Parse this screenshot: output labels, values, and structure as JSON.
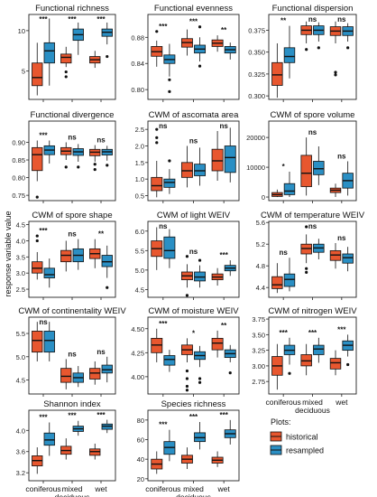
{
  "chart_data": {
    "type": "boxplot",
    "ylabel": "response variable value",
    "categories": [
      "coniferous",
      "mixed\ndeciduous",
      "wet"
    ],
    "legend": {
      "title": "Plots:",
      "placement": "bottom-right",
      "entries": [
        {
          "name": "historical",
          "color": "#e8572f"
        },
        {
          "name": "resampled",
          "color": "#2a8fc4"
        }
      ]
    },
    "panels": [
      {
        "title": "Functional richness",
        "ylim": [
          1.5,
          12.0
        ],
        "yticks": [
          5,
          10
        ],
        "sig": [
          "***",
          "***",
          "***"
        ],
        "boxes": [
          {
            "h": [
              2,
              3.2,
              4.2,
              6.0,
              8.5
            ],
            "r": [
              3.2,
              6.0,
              7.5,
              8.5,
              11.5
            ],
            "ho": [],
            "ro": []
          },
          {
            "h": [
              5.5,
              6.0,
              6.7,
              7.1,
              8.0
            ],
            "r": [
              7.0,
              8.8,
              9.5,
              10.2,
              11.0
            ],
            "ho": [
              4.9,
              4.3
            ],
            "ro": []
          },
          {
            "h": [
              5.4,
              6.0,
              6.4,
              6.8,
              7.5
            ],
            "r": [
              8.3,
              9.3,
              9.8,
              10.2,
              11.0
            ],
            "ho": [],
            "ro": [
              6.8
            ]
          }
        ]
      },
      {
        "title": "Functional evenness",
        "ylim": [
          0.785,
          0.915
        ],
        "yticks": [
          0.8,
          0.84,
          0.88
        ],
        "sig": [
          "***",
          "***",
          "**"
        ],
        "boxes": [
          {
            "h": [
              0.835,
              0.851,
              0.858,
              0.866,
              0.875
            ],
            "r": [
              0.82,
              0.84,
              0.846,
              0.853,
              0.87
            ],
            "ho": [
              0.889
            ],
            "ro": [
              0.815,
              0.797
            ]
          },
          {
            "h": [
              0.852,
              0.865,
              0.872,
              0.878,
              0.892
            ],
            "r": [
              0.843,
              0.856,
              0.862,
              0.868,
              0.88
            ],
            "ho": [],
            "ro": [
              0.836,
              0.896
            ]
          },
          {
            "h": [
              0.858,
              0.866,
              0.871,
              0.876,
              0.883
            ],
            "r": [
              0.846,
              0.856,
              0.861,
              0.866,
              0.872
            ],
            "ho": [],
            "ro": []
          }
        ]
      },
      {
        "title": "Functional dispersion",
        "ylim": [
          0.296,
          0.393
        ],
        "yticks": [
          0.3,
          0.325,
          0.35,
          0.375
        ],
        "sig": [
          "**",
          "ns",
          "ns"
        ],
        "boxes": [
          {
            "h": [
              0.298,
              0.312,
              0.324,
              0.338,
              0.36
            ],
            "r": [
              0.32,
              0.338,
              0.345,
              0.355,
              0.38
            ],
            "ho": [],
            "ro": []
          },
          {
            "h": [
              0.36,
              0.37,
              0.375,
              0.38,
              0.385
            ],
            "r": [
              0.362,
              0.37,
              0.375,
              0.38,
              0.384
            ],
            "ho": [
              0.353
            ],
            "ro": [
              0.355
            ]
          },
          {
            "h": [
              0.36,
              0.369,
              0.374,
              0.379,
              0.385
            ],
            "r": [
              0.362,
              0.369,
              0.374,
              0.379,
              0.383
            ],
            "ho": [
              0.327,
              0.324
            ],
            "ro": [
              0.355
            ]
          }
        ]
      },
      {
        "title": "Functional divergence",
        "ylim": [
          0.735,
          0.96
        ],
        "yticks": [
          0.75,
          0.8,
          0.85,
          0.9
        ],
        "sig": [
          "***",
          "ns",
          "ns"
        ],
        "boxes": [
          {
            "h": [
              0.79,
              0.82,
              0.865,
              0.885,
              0.905
            ],
            "r": [
              0.84,
              0.865,
              0.878,
              0.89,
              0.905
            ],
            "ho": [
              0.745
            ],
            "ro": []
          },
          {
            "h": [
              0.85,
              0.865,
              0.875,
              0.885,
              0.9
            ],
            "r": [
              0.845,
              0.863,
              0.873,
              0.882,
              0.895
            ],
            "ho": [
              0.83
            ],
            "ro": [
              0.83
            ]
          },
          {
            "h": [
              0.845,
              0.862,
              0.872,
              0.88,
              0.892
            ],
            "r": [
              0.848,
              0.864,
              0.873,
              0.88,
              0.89
            ],
            "ho": [
              0.838,
              0.823
            ],
            "ro": [
              0.835
            ]
          }
        ]
      },
      {
        "title": "CWM of ascomata area",
        "ylim": [
          0.35,
          2.75
        ],
        "yticks": [
          0.5,
          1.0,
          1.5,
          2.0,
          2.5
        ],
        "sig": [
          "ns",
          "ns",
          "ns"
        ],
        "boxes": [
          {
            "h": [
              0.45,
              0.65,
              0.8,
              1.05,
              1.55
            ],
            "r": [
              0.55,
              0.75,
              0.9,
              1.0,
              1.3
            ],
            "ho": [
              2.1,
              2.25,
              2.5
            ],
            "ro": [
              1.55
            ]
          },
          {
            "h": [
              0.75,
              1.05,
              1.25,
              1.5,
              2.0
            ],
            "r": [
              0.8,
              1.1,
              1.25,
              1.45,
              1.95
            ],
            "ho": [],
            "ro": []
          },
          {
            "h": [
              0.95,
              1.25,
              1.55,
              1.9,
              2.45
            ],
            "r": [
              0.9,
              1.2,
              1.65,
              2.0,
              2.55
            ],
            "ho": [],
            "ro": []
          }
        ]
      },
      {
        "title": "CWM of spore volume",
        "ylim": [
          -1200,
          25500
        ],
        "yticks": [
          0,
          10000,
          20000
        ],
        "sig": [
          "*",
          "ns",
          "ns"
        ],
        "boxes": [
          {
            "h": [
              0,
              200,
              800,
              1500,
              2500
            ],
            "r": [
              0,
              800,
              2000,
              4500,
              8500
            ],
            "ho": [],
            "ro": []
          },
          {
            "h": [
              500,
              3500,
              8000,
              14000,
              20000
            ],
            "r": [
              4000,
              7500,
              9500,
              12000,
              17000
            ],
            "ho": [],
            "ro": []
          },
          {
            "h": [
              0,
              1500,
              2300,
              3000,
              4500
            ],
            "r": [
              500,
              3000,
              5500,
              8000,
              12000
            ],
            "ho": [],
            "ro": []
          }
        ]
      },
      {
        "title": "CWM of spore shape",
        "ylim": [
          2.25,
          4.6
        ],
        "yticks": [
          2.5,
          3.0,
          3.5,
          4.0,
          4.5
        ],
        "sig": [
          "***",
          "ns",
          "**"
        ],
        "boxes": [
          {
            "h": [
              2.8,
              3.0,
              3.15,
              3.35,
              3.65
            ],
            "r": [
              2.55,
              2.85,
              2.95,
              3.15,
              3.45
            ],
            "ho": [
              4.0,
              4.15
            ],
            "ro": []
          },
          {
            "h": [
              3.05,
              3.35,
              3.55,
              3.7,
              4.0
            ],
            "r": [
              3.1,
              3.35,
              3.55,
              3.75,
              4.05
            ],
            "ho": [],
            "ro": []
          },
          {
            "h": [
              3.15,
              3.45,
              3.6,
              3.75,
              4.05
            ],
            "r": [
              2.85,
              3.2,
              3.35,
              3.55,
              3.85
            ],
            "ho": [],
            "ro": [
              2.55
            ]
          }
        ]
      },
      {
        "title": "CWM of light WEIV",
        "ylim": [
          4.3,
          6.25
        ],
        "yticks": [
          4.5,
          5.0,
          5.5,
          6.0
        ],
        "sig": [
          "ns",
          "ns",
          "***"
        ],
        "boxes": [
          {
            "h": [
              5.0,
              5.35,
              5.55,
              5.75,
              6.1
            ],
            "r": [
              5.05,
              5.3,
              5.5,
              5.85,
              6.05
            ],
            "ho": [],
            "ro": []
          },
          {
            "h": [
              4.55,
              4.75,
              4.85,
              4.95,
              5.15
            ],
            "r": [
              4.55,
              4.72,
              4.82,
              4.95,
              5.12
            ],
            "ho": [
              4.35,
              5.35
            ],
            "ro": [
              5.25
            ]
          },
          {
            "h": [
              4.6,
              4.75,
              4.82,
              4.9,
              5.05
            ],
            "r": [
              4.85,
              4.98,
              5.05,
              5.12,
              5.25
            ],
            "ho": [],
            "ro": []
          }
        ]
      },
      {
        "title": "CWM of temperature WEIV",
        "ylim": [
          4.22,
          5.62
        ],
        "yticks": [
          4.4,
          4.8,
          5.2,
          5.6
        ],
        "sig": [
          "ns",
          "ns",
          "ns"
        ],
        "boxes": [
          {
            "h": [
              4.3,
              4.38,
              4.45,
              4.6,
              4.85
            ],
            "r": [
              4.33,
              4.42,
              4.55,
              4.65,
              4.95
            ],
            "ho": [],
            "ro": []
          },
          {
            "h": [
              4.85,
              5.02,
              5.12,
              5.2,
              5.38
            ],
            "r": [
              4.92,
              5.05,
              5.13,
              5.2,
              5.3
            ],
            "ho": [
              4.68,
              4.75,
              5.52
            ],
            "ro": []
          },
          {
            "h": [
              4.75,
              4.9,
              5.0,
              5.08,
              5.22
            ],
            "r": [
              4.7,
              4.85,
              4.95,
              5.02,
              5.15
            ],
            "ho": [],
            "ro": []
          }
        ]
      },
      {
        "title": "CWM of continentality WEIV",
        "ylim": [
          4.2,
          5.85
        ],
        "yticks": [
          4.5,
          5.0,
          5.5
        ],
        "sig": [
          "ns",
          "ns",
          "ns"
        ],
        "boxes": [
          {
            "h": [
              4.9,
              5.1,
              5.35,
              5.55,
              5.75
            ],
            "r": [
              4.9,
              5.1,
              5.35,
              5.55,
              5.75
            ],
            "ho": [],
            "ro": []
          },
          {
            "h": [
              4.3,
              4.45,
              4.58,
              4.75,
              4.95
            ],
            "r": [
              4.35,
              4.45,
              4.55,
              4.65,
              4.8
            ],
            "ho": [],
            "ro": []
          },
          {
            "h": [
              4.4,
              4.52,
              4.65,
              4.75,
              4.9
            ],
            "r": [
              4.45,
              4.65,
              4.72,
              4.82,
              5.0
            ],
            "ho": [],
            "ro": []
          }
        ]
      },
      {
        "title": "CWM of moisture WEIV",
        "ylim": [
          3.82,
          4.62
        ],
        "yticks": [
          4.0,
          4.25,
          4.5
        ],
        "sig": [
          "***",
          "*",
          "**"
        ],
        "boxes": [
          {
            "h": [
              4.15,
              4.25,
              4.33,
              4.4,
              4.5
            ],
            "r": [
              4.05,
              4.12,
              4.18,
              4.22,
              4.28
            ],
            "ho": [],
            "ro": []
          },
          {
            "h": [
              4.15,
              4.23,
              4.28,
              4.33,
              4.4
            ],
            "r": [
              4.1,
              4.18,
              4.22,
              4.26,
              4.32
            ],
            "ho": [
              3.98,
              3.9,
              3.86,
              4.06
            ],
            "ro": [
              3.98,
              3.94
            ]
          },
          {
            "h": [
              4.2,
              4.28,
              4.35,
              4.4,
              4.48
            ],
            "r": [
              4.15,
              4.2,
              4.24,
              4.28,
              4.33
            ],
            "ho": [],
            "ro": [
              4.04
            ]
          }
        ]
      },
      {
        "title": "CWM of nitrogen WEIV",
        "ylim": [
          2.55,
          3.78
        ],
        "yticks": [
          2.75,
          3.0,
          3.25,
          3.5,
          3.75
        ],
        "sig": [
          "***",
          "***",
          "***"
        ],
        "boxes": [
          {
            "h": [
              2.62,
              2.85,
              3.0,
              3.15,
              3.35
            ],
            "r": [
              3.02,
              3.18,
              3.25,
              3.33,
              3.45
            ],
            "ho": [],
            "ro": [
              2.88
            ]
          },
          {
            "h": [
              2.85,
              3.0,
              3.08,
              3.18,
              3.35
            ],
            "r": [
              3.05,
              3.18,
              3.27,
              3.33,
              3.45
            ],
            "ho": [],
            "ro": []
          },
          {
            "h": [
              2.85,
              2.95,
              3.05,
              3.12,
              3.25
            ],
            "r": [
              3.15,
              3.25,
              3.33,
              3.4,
              3.5
            ],
            "ho": [],
            "ro": [
              3.02
            ]
          }
        ]
      },
      {
        "title": "Shannon index",
        "ylim": [
          3.05,
          4.38
        ],
        "yticks": [
          3.2,
          3.6,
          4.0
        ],
        "sig": [
          "***",
          "***",
          "***"
        ],
        "boxes": [
          {
            "h": [
              3.18,
              3.33,
              3.43,
              3.52,
              3.68
            ],
            "r": [
              3.52,
              3.72,
              3.82,
              3.95,
              4.15
            ],
            "ho": [],
            "ro": []
          },
          {
            "h": [
              3.45,
              3.55,
              3.62,
              3.7,
              3.85
            ],
            "r": [
              3.9,
              3.98,
              4.03,
              4.08,
              4.18
            ],
            "ho": [],
            "ro": []
          },
          {
            "h": [
              3.45,
              3.53,
              3.6,
              3.65,
              3.75
            ],
            "r": [
              3.95,
              4.02,
              4.08,
              4.12,
              4.2
            ],
            "ho": [],
            "ro": []
          }
        ]
      },
      {
        "title": "Species richness",
        "ylim": [
          18,
          90
        ],
        "yticks": [
          20,
          40,
          60,
          80
        ],
        "sig": [
          "***",
          "***",
          "***"
        ],
        "boxes": [
          {
            "h": [
              25,
              30,
              35,
              40,
              48
            ],
            "r": [
              38,
              45,
              52,
              58,
              70
            ],
            "ho": [],
            "ro": []
          },
          {
            "h": [
              30,
              36,
              40,
              44,
              52
            ],
            "r": [
              50,
              58,
              62,
              67,
              78
            ],
            "ho": [],
            "ro": []
          },
          {
            "h": [
              32,
              36,
              39,
              42,
              48
            ],
            "r": [
              55,
              62,
              66,
              70,
              80
            ],
            "ho": [],
            "ro": []
          }
        ]
      }
    ]
  }
}
